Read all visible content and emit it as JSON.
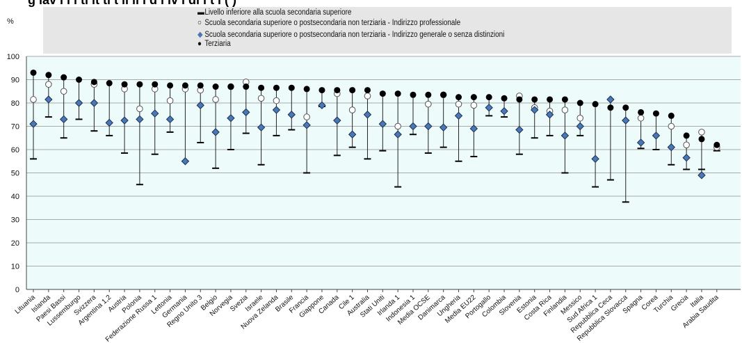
{
  "title": "g lav i  i  i  ti  it  ti t    li  ll   i   d i   iv  i di i t i   (  )",
  "ylabel": "%",
  "legend": [
    {
      "symbol": "dash",
      "label": "Livello inferiore alla scuola secondaria superiore",
      "color": "#000000"
    },
    {
      "symbol": "open-circle",
      "label": "Scuola secondaria superiore o postsecondaria non terziaria -  Indirizzo professionale",
      "color": "#ffffff"
    },
    {
      "symbol": "diamond",
      "label": "Scuola secondaria superiore o postsecondaria non terziaria -  Indirizzo generale o senza distinzioni",
      "color": "#4a78b5"
    },
    {
      "symbol": "filled-circle",
      "label": "Terziaria",
      "color": "#000000"
    }
  ],
  "colors": {
    "plot_bg": "#eefbfb",
    "grid": "#a8a8a8",
    "diamond_fill": "#4a78b5",
    "diamond_stroke": "#1a2f55",
    "legend_bg": "#e6e6e6"
  },
  "chart_data": {
    "type": "scatter",
    "ylabel": "%",
    "ylim": [
      0,
      100
    ],
    "yticks": [
      0,
      10,
      20,
      30,
      40,
      50,
      60,
      70,
      80,
      90,
      100
    ],
    "grid": true,
    "legend_position": "top",
    "categories": [
      "Lituania",
      "Islanda",
      "Paesi Bassi",
      "Lussemburgo",
      "Svizzera",
      "Argentina 1,2",
      "Austria",
      "Polonia",
      "Federazione Russa 1",
      "Lettonia",
      "Germania",
      "Regno Unito 3",
      "Belgio",
      "Norvegia",
      "Svezia",
      "Israele",
      "Nuova Zelanda",
      "Brasile",
      "Francia",
      "Giappone",
      "Canada",
      "Cile 1",
      "Australia",
      "Stati Uniti",
      "Irlanda 1",
      "Indonesia 1",
      "Media OCSE",
      "Danimarca",
      "Ungheria",
      "Media EU22",
      "Portogallo",
      "Colombia",
      "Slovenia",
      "Estonia",
      "Costa Rica",
      "Finlandia",
      "Messico",
      "Sud Africa 1",
      "Repubblica Ceca",
      "Repubblica Slovacca",
      "Spagna",
      "Corea",
      "Turchia",
      "Grecia",
      "Italia",
      "Arabia Saudita"
    ],
    "series": [
      {
        "name": "Livello inferiore alla scuola secondaria superiore",
        "values": [
          56,
          74,
          65,
          73,
          68,
          66,
          58.5,
          45,
          58,
          67.5,
          55,
          63,
          52,
          60,
          67,
          53.5,
          66,
          68.5,
          50,
          78.5,
          57.5,
          61,
          56,
          59.5,
          44,
          66.5,
          58.5,
          61,
          55,
          57,
          74.5,
          74,
          58,
          65,
          66,
          50,
          66,
          44,
          47,
          37.5,
          60.5,
          60,
          53.5,
          51.5,
          51.5,
          59.5
        ]
      },
      {
        "name": "Scuola secondaria superiore o postsecondaria non terziaria -  Indirizzo professionale",
        "values": [
          81.5,
          88,
          85,
          null,
          88,
          null,
          86,
          77.5,
          86,
          81,
          86,
          85.5,
          81.5,
          87,
          89,
          82,
          81,
          null,
          74,
          null,
          84,
          77,
          83,
          null,
          70,
          null,
          79.5,
          83.5,
          79.5,
          79,
          null,
          null,
          83,
          78,
          76.5,
          77,
          73.5,
          null,
          null,
          null,
          73.5,
          null,
          70,
          62,
          67.5,
          61
        ]
      },
      {
        "name": "Scuola secondaria superiore o postsecondaria non terziaria -  Indirizzo generale o senza distinzioni",
        "values": [
          71,
          81.5,
          73,
          80,
          80,
          71.5,
          72.5,
          73,
          75.5,
          73,
          55,
          79,
          67.5,
          73.5,
          76,
          69.5,
          77,
          75,
          70.5,
          79,
          72.5,
          66.5,
          75,
          71,
          66.5,
          70,
          70,
          69.5,
          74.5,
          69,
          78,
          76.5,
          68.5,
          77,
          75,
          66,
          70,
          56,
          81.5,
          72.5,
          63,
          66,
          61,
          56.5,
          49,
          null
        ]
      },
      {
        "name": "Terziaria",
        "values": [
          93,
          92,
          91,
          90,
          89,
          88.5,
          88,
          88,
          88,
          87.5,
          87.5,
          87.5,
          87,
          87,
          87,
          86.5,
          86.5,
          86.5,
          86,
          85.5,
          85.5,
          85.5,
          85.5,
          84,
          84,
          83.5,
          83.5,
          83.5,
          82.5,
          82.5,
          82.5,
          82,
          81.5,
          81.5,
          81.5,
          81.5,
          80,
          79.5,
          78,
          78,
          76,
          75.5,
          74.5,
          66,
          64.5,
          62
        ]
      }
    ]
  }
}
